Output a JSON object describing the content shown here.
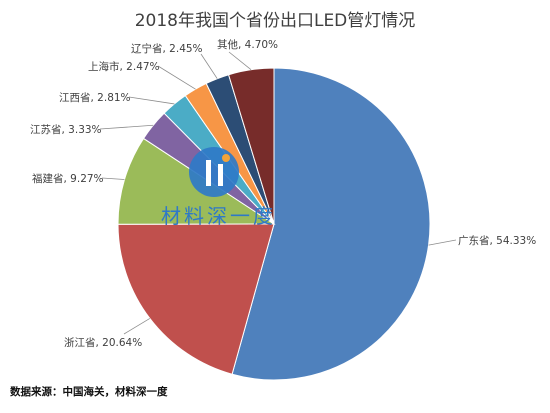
{
  "chart_data": {
    "type": "pie",
    "title": "2018年我国个省份出口LED管灯情况",
    "slices": [
      {
        "name": "广东省",
        "value": 54.33,
        "label": "广东省, 54.33%",
        "color": "#4f81bd"
      },
      {
        "name": "浙江省",
        "value": 20.64,
        "label": "浙江省, 20.64%",
        "color": "#c0504d"
      },
      {
        "name": "福建省",
        "value": 9.27,
        "label": "福建省, 9.27%",
        "color": "#9bbb59"
      },
      {
        "name": "江苏省",
        "value": 3.33,
        "label": "江苏省, 3.33%",
        "color": "#8064a2"
      },
      {
        "name": "江西省",
        "value": 2.81,
        "label": "江西省, 2.81%",
        "color": "#4bacc6"
      },
      {
        "name": "上海市",
        "value": 2.47,
        "label": "上海市, 2.47%",
        "color": "#f79646"
      },
      {
        "name": "辽宁省",
        "value": 2.45,
        "label": "辽宁省, 2.45%",
        "color": "#2c4d75"
      },
      {
        "name": "其他",
        "value": 4.7,
        "label": "其他, 4.70%",
        "color": "#772c2a"
      }
    ]
  },
  "source": "数据来源：中国海关，材料深一度",
  "watermark": {
    "text": "材料深一度",
    "color": "#2f79c7"
  }
}
